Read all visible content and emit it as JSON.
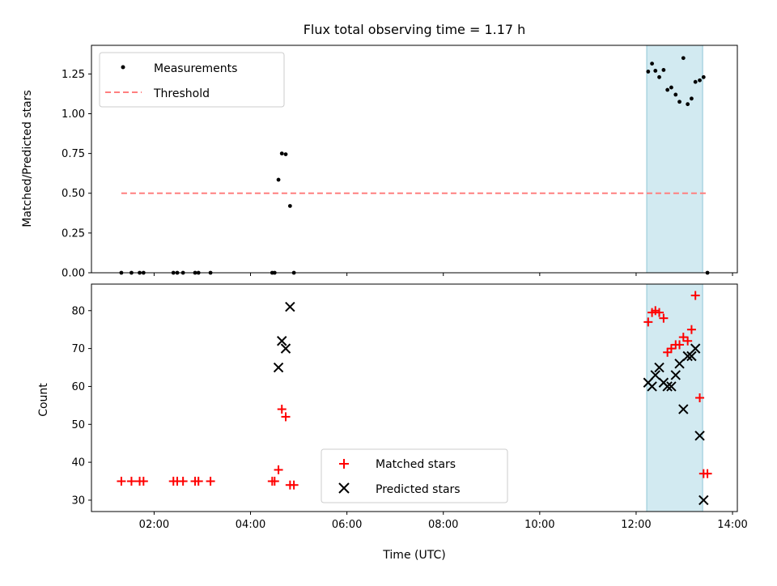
{
  "chart_data": {
    "type": "scatter",
    "title": "Flux total observing time = 1.17 h",
    "xlabel": "Time (UTC)",
    "x_unit": "hours UTC",
    "x_ticks": [
      "02:00",
      "04:00",
      "06:00",
      "08:00",
      "10:00",
      "12:00",
      "14:00"
    ],
    "highlight_span": [
      12.22,
      13.38
    ],
    "highlight_color": "#add8e6",
    "panels": [
      {
        "ylabel": "Matched/Predicted stars",
        "ylim": [
          0,
          1.43
        ],
        "y_ticks": [
          "0.00",
          "0.25",
          "0.50",
          "0.75",
          "1.00",
          "1.25"
        ],
        "legend": [
          "Measurements",
          "Threshold"
        ],
        "series": [
          {
            "name": "Measurements",
            "marker": "dot",
            "color": "#000000",
            "x": [
              1.32,
              1.53,
              1.7,
              1.78,
              2.4,
              2.48,
              2.6,
              2.85,
              2.92,
              3.17,
              4.45,
              4.5,
              4.58,
              4.65,
              4.73,
              4.82,
              4.9,
              12.25,
              12.33,
              12.4,
              12.48,
              12.57,
              12.65,
              12.73,
              12.82,
              12.9,
              12.98,
              13.07,
              13.15,
              13.23,
              13.32,
              13.4,
              13.48
            ],
            "y": [
              0,
              0,
              0,
              0,
              0,
              0,
              0,
              0,
              0,
              0,
              0,
              0,
              0.585,
              0.75,
              0.745,
              0.42,
              0,
              1.265,
              1.315,
              1.27,
              1.23,
              1.275,
              1.15,
              1.165,
              1.12,
              1.075,
              1.35,
              1.06,
              1.095,
              1.2,
              1.21,
              1.23,
              0
            ]
          },
          {
            "name": "Threshold",
            "style": "dashed",
            "color": "#ff7f7f",
            "x": [
              1.32,
              13.48
            ],
            "y": [
              0.5,
              0.5
            ]
          }
        ]
      },
      {
        "ylabel": "Count",
        "ylim": [
          27,
          87
        ],
        "y_ticks": [
          "30",
          "40",
          "50",
          "60",
          "70",
          "80"
        ],
        "legend": [
          "Matched stars",
          "Predicted stars"
        ],
        "series": [
          {
            "name": "Matched stars",
            "marker": "plus",
            "color": "#ff0000",
            "x": [
              1.32,
              1.53,
              1.7,
              1.78,
              2.4,
              2.48,
              2.6,
              2.85,
              2.92,
              3.17,
              4.45,
              4.5,
              4.58,
              4.65,
              4.73,
              4.82,
              4.9,
              12.25,
              12.33,
              12.4,
              12.48,
              12.57,
              12.65,
              12.73,
              12.82,
              12.9,
              12.98,
              13.07,
              13.15,
              13.23,
              13.32,
              13.4,
              13.48
            ],
            "y": [
              35,
              35,
              35,
              35,
              35,
              35,
              35,
              35,
              35,
              35,
              35,
              35,
              38,
              54,
              52,
              34,
              34,
              77,
              79.5,
              80,
              79.5,
              78,
              69,
              70,
              71,
              71,
              73,
              72,
              75,
              84,
              57,
              37,
              37
            ]
          },
          {
            "name": "Predicted stars",
            "marker": "x",
            "color": "#000000",
            "x": [
              4.58,
              4.65,
              4.73,
              4.82,
              12.25,
              12.33,
              12.4,
              12.48,
              12.57,
              12.65,
              12.73,
              12.82,
              12.9,
              12.98,
              13.07,
              13.15,
              13.23,
              13.32,
              13.4
            ],
            "y": [
              65,
              72,
              70,
              81,
              61,
              60,
              63,
              65,
              61,
              60,
              60,
              63,
              66,
              54,
              68,
              68,
              70,
              47,
              30
            ]
          }
        ]
      }
    ]
  }
}
